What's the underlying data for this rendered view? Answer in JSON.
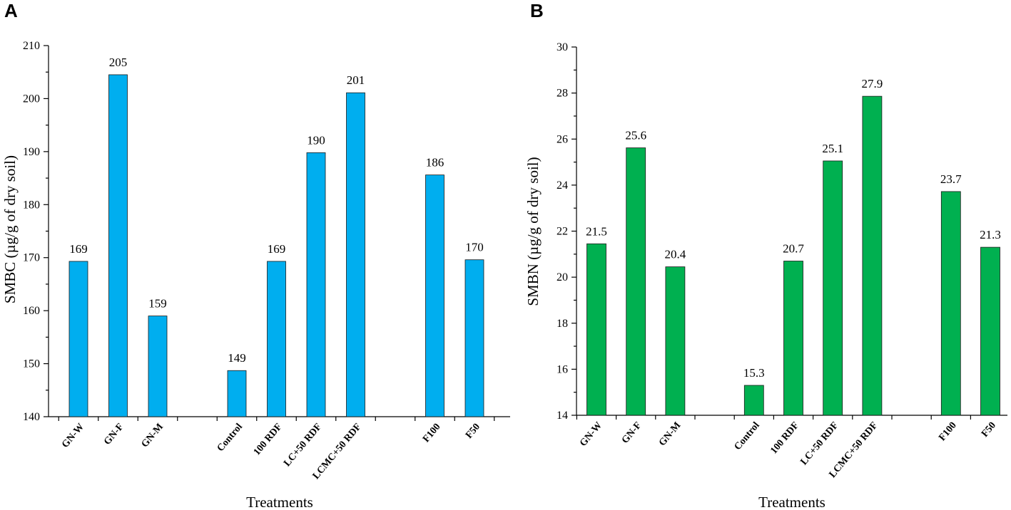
{
  "chart_data": [
    {
      "type": "bar",
      "panel_label": "A",
      "title": "",
      "xlabel": "Treatments",
      "ylabel": "SMBC (µg/g of dry soil)",
      "ylim": [
        140,
        210
      ],
      "y_ticks": [
        "140",
        "150",
        "160",
        "170",
        "180",
        "190",
        "200",
        "210"
      ],
      "bar_color": "#00AEEF",
      "slots": [
        "GN-W",
        "GN-F",
        "GN-M",
        "",
        "Control",
        "100 RDF",
        "LC+50 RDF",
        "LCMC+50 RDF",
        "",
        "F100",
        "F50"
      ],
      "categories": [
        "GN-W",
        "GN-F",
        "GN-M",
        "Control",
        "100 RDF",
        "LC+50 RDF",
        "LCMC+50 RDF",
        "F100",
        "F50"
      ],
      "values": [
        169.3,
        204.5,
        159.0,
        148.7,
        169.3,
        189.8,
        201.1,
        185.6,
        169.6
      ],
      "data_labels": [
        "169",
        "205",
        "159",
        "149",
        "169",
        "190",
        "201",
        "186",
        "170"
      ]
    },
    {
      "type": "bar",
      "panel_label": "B",
      "title": "",
      "xlabel": "Treatments",
      "ylabel": "SMBN (µg/g of dry soil)",
      "ylim": [
        14,
        30
      ],
      "y_ticks": [
        "14",
        "16",
        "18",
        "20",
        "22",
        "24",
        "26",
        "28",
        "30"
      ],
      "bar_color": "#00B050",
      "slots": [
        "GN-W",
        "GN-F",
        "GN-M",
        "",
        "Control",
        "100 RDF",
        "LC+50 RDF",
        "LCMC+50 RDF",
        "",
        "F100",
        "F50"
      ],
      "categories": [
        "GN-W",
        "GN-F",
        "GN-M",
        "Control",
        "100 RDF",
        "LC+50 RDF",
        "LCMC+50 RDF",
        "F100",
        "F50"
      ],
      "values": [
        21.45,
        25.62,
        20.45,
        15.3,
        20.7,
        25.05,
        27.86,
        23.72,
        21.3
      ],
      "data_labels": [
        "21.5",
        "25.6",
        "20.4",
        "15.3",
        "20.7",
        "25.1",
        "27.9",
        "23.7",
        "21.3"
      ]
    }
  ]
}
